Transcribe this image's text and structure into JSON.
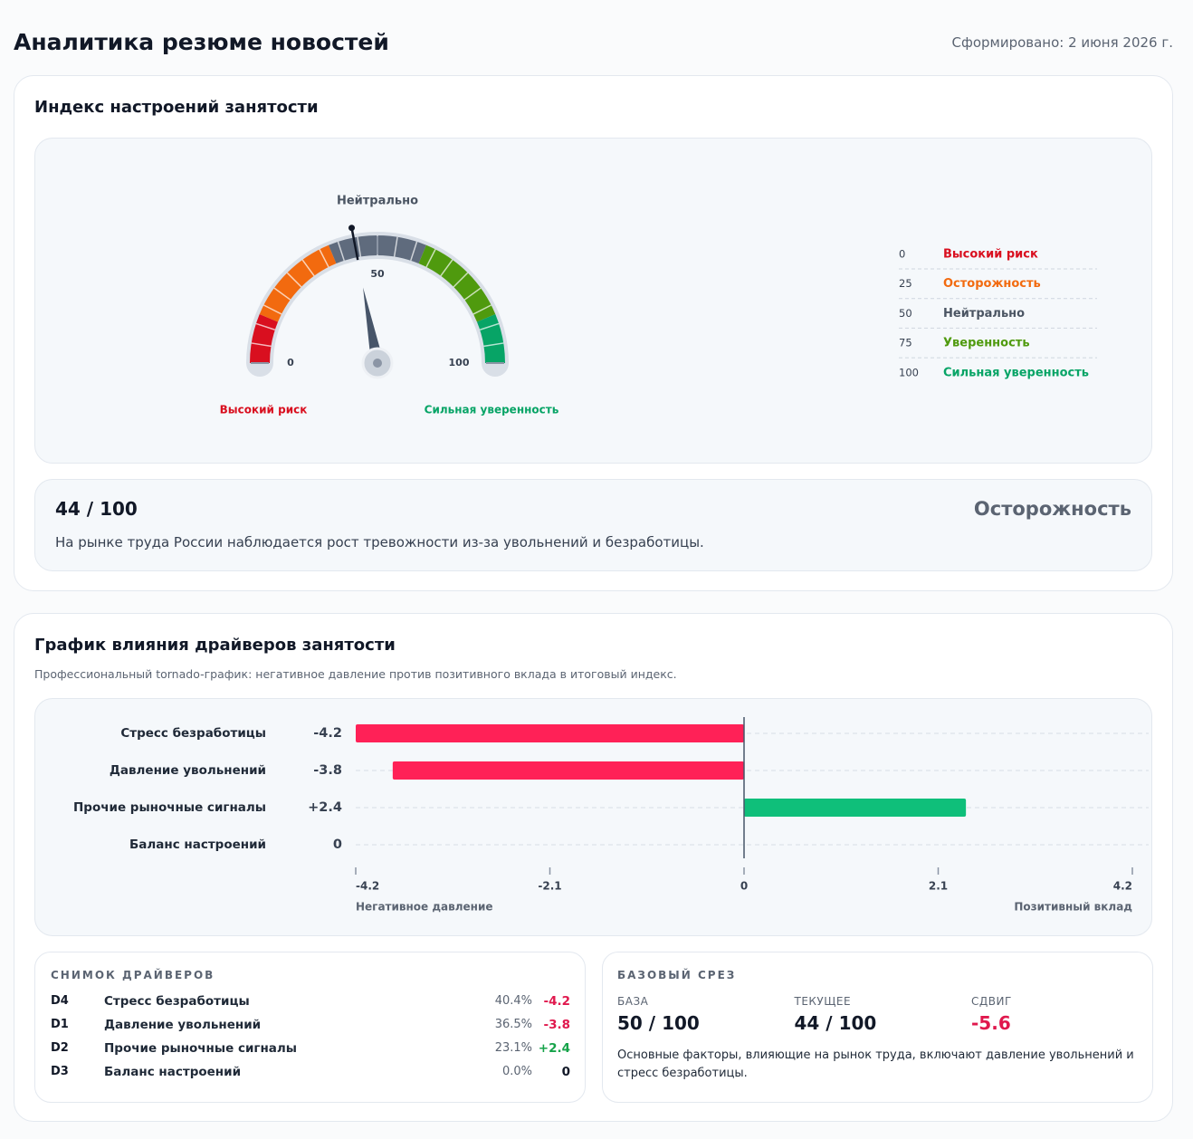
{
  "header": {
    "title": "Аналитика резюме новостей",
    "generated": "Сформировано: 2 июня 2026 г."
  },
  "chart_data": [
    {
      "type": "gauge",
      "title": "Индекс настроений занятости",
      "value": 44,
      "ylim": [
        0,
        100
      ],
      "yticks": [
        0,
        50,
        100
      ],
      "bands": [
        {
          "value": 0,
          "name": "Высокий риск",
          "color": "#d90f1f"
        },
        {
          "value": 25,
          "name": "Осторожность",
          "color": "#f26a0f"
        },
        {
          "value": 50,
          "name": "Нейтрально",
          "color": "#5f6b7d"
        },
        {
          "value": 75,
          "name": "Уверенность",
          "color": "#4f9a0e"
        },
        {
          "value": 100,
          "name": "Сильная уверенность",
          "color": "#07a466"
        }
      ]
    },
    {
      "type": "tornado",
      "title": "График влияния драйверов занятости",
      "subtitle": "Профессиональный tornado-график: негативное давление против позитивного вклада в итоговый индекс.",
      "categories": [
        "Стресс безработицы",
        "Давление увольнений",
        "Прочие рыночные сигналы",
        "Баланс настроений"
      ],
      "values": [
        -4.2,
        -3.8,
        2.4,
        0
      ],
      "value_labels": [
        "-4.2",
        "-3.8",
        "+2.4",
        "0"
      ],
      "xlim": [
        -4.2,
        4.2
      ],
      "xticks": [
        -4.2,
        -2.1,
        0,
        2.1,
        4.2
      ],
      "xlabel_negative": "Негативное давление",
      "xlabel_positive": "Позитивный вклад",
      "negative_color": "#ff2157",
      "positive_color": "#0fbf7a",
      "grid": true
    }
  ],
  "summary": {
    "score": "44 / 100",
    "status": "Осторожность",
    "text": "На рынке труда России наблюдается рост тревожности из-за увольнений и безработицы."
  },
  "snapshot": {
    "title": "СНИМОК ДРАЙВЕРОВ",
    "rows": [
      [
        "D4",
        "Стресс безработицы",
        "40.4%",
        "-4.2"
      ],
      [
        "D1",
        "Давление увольнений",
        "36.5%",
        "-3.8"
      ],
      [
        "D2",
        "Прочие рыночные сигналы",
        "23.1%",
        "+2.4"
      ],
      [
        "D3",
        "Баланс настроений",
        "0.0%",
        "0"
      ]
    ]
  },
  "baseline": {
    "title": "БАЗОВЫЙ СРЕЗ",
    "items": [
      {
        "label": "БАЗА",
        "value": "50 / 100"
      },
      {
        "label": "ТЕКУЩЕЕ",
        "value": "44 / 100"
      },
      {
        "label": "СДВИГ",
        "value": "-5.6"
      }
    ],
    "note": "Основные факторы, влияющие на рынок труда, включают давление увольнений и стресс безработицы."
  }
}
